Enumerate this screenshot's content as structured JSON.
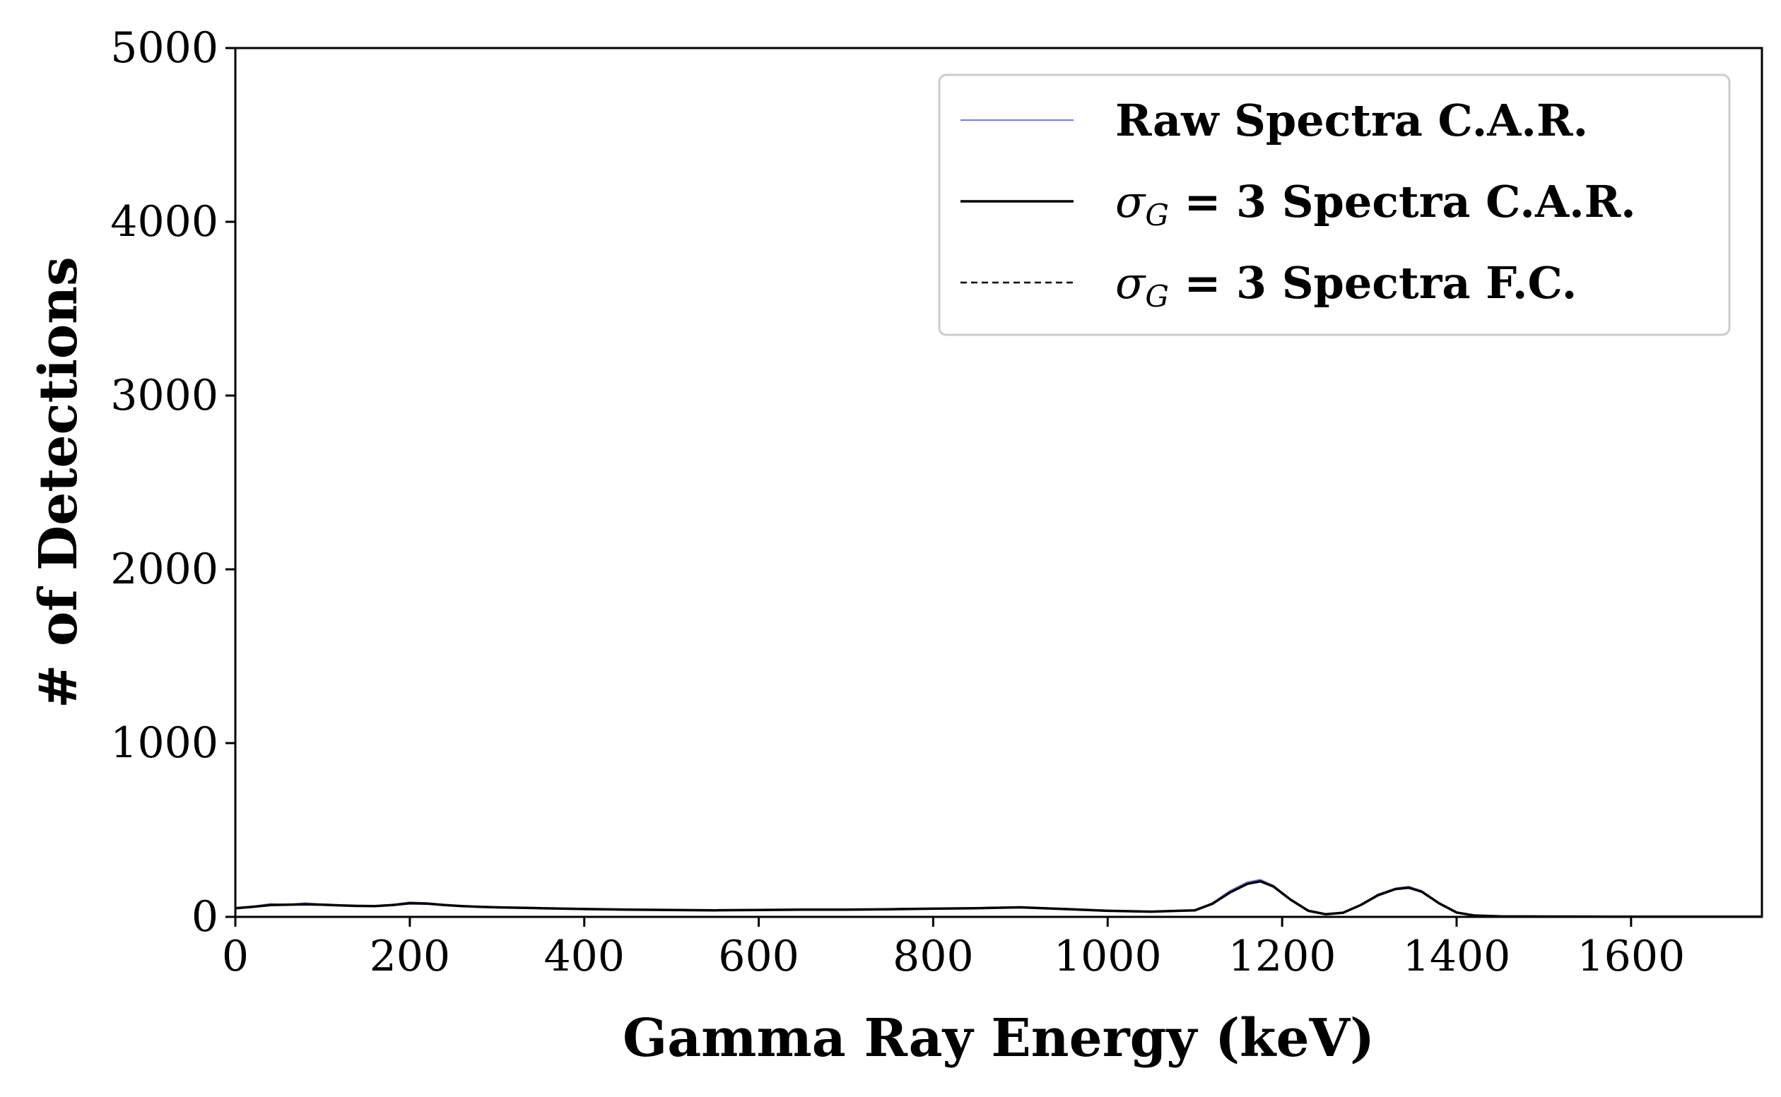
{
  "chart_data": {
    "type": "line",
    "xlabel": "Gamma Ray Energy (keV)",
    "ylabel": "# of Detections",
    "xlim": [
      0,
      1750
    ],
    "ylim": [
      0,
      5000
    ],
    "xticks": [
      0,
      200,
      400,
      600,
      800,
      1000,
      1200,
      1400,
      1600
    ],
    "yticks": [
      0,
      1000,
      2000,
      3000,
      4000,
      5000
    ],
    "x_tick_labels": [
      "0",
      "200",
      "400",
      "600",
      "800",
      "1000",
      "1200",
      "1400",
      "1600"
    ],
    "y_tick_labels": [
      "0",
      "1000",
      "2000",
      "3000",
      "4000",
      "5000"
    ],
    "grid": false,
    "legend_position": "top-right",
    "legend": [
      {
        "series": "raw",
        "text": "Raw Spectra C.A.R.",
        "symbol": "",
        "rest": ""
      },
      {
        "series": "car",
        "text": "",
        "symbol": "σ",
        "sub": "G",
        "rest": " = 3 Spectra C.A.R."
      },
      {
        "series": "fc",
        "text": "",
        "symbol": "σ",
        "sub": "G",
        "rest": " = 3 Spectra F.C."
      }
    ],
    "series": [
      {
        "name": "Raw Spectra C.A.R.",
        "color": "#7b7be0",
        "style": "solid-thin",
        "x": [
          0,
          20,
          40,
          60,
          80,
          100,
          120,
          140,
          160,
          180,
          200,
          220,
          240,
          260,
          280,
          300,
          350,
          400,
          450,
          500,
          550,
          600,
          650,
          700,
          750,
          800,
          850,
          900,
          950,
          1000,
          1050,
          1100,
          1120,
          1140,
          1160,
          1175,
          1190,
          1210,
          1230,
          1250,
          1270,
          1290,
          1310,
          1330,
          1345,
          1360,
          1380,
          1400,
          1420,
          1450,
          1500,
          1600,
          1700,
          1750
        ],
        "y": [
          50,
          60,
          75,
          70,
          80,
          72,
          68,
          65,
          62,
          70,
          85,
          80,
          70,
          62,
          58,
          55,
          50,
          45,
          42,
          40,
          38,
          40,
          42,
          42,
          44,
          48,
          52,
          58,
          45,
          35,
          30,
          40,
          80,
          150,
          200,
          215,
          180,
          100,
          35,
          15,
          25,
          70,
          130,
          165,
          175,
          150,
          80,
          25,
          8,
          3,
          2,
          1,
          1,
          1
        ]
      },
      {
        "name": "σG = 3 Spectra C.A.R.",
        "color": "#000000",
        "style": "solid",
        "x": [
          0,
          20,
          40,
          60,
          80,
          100,
          120,
          140,
          160,
          180,
          200,
          220,
          240,
          260,
          280,
          300,
          350,
          400,
          450,
          500,
          550,
          600,
          650,
          700,
          750,
          800,
          850,
          900,
          950,
          1000,
          1050,
          1100,
          1120,
          1140,
          1160,
          1175,
          1190,
          1210,
          1230,
          1250,
          1270,
          1290,
          1310,
          1330,
          1345,
          1360,
          1380,
          1400,
          1420,
          1450,
          1500,
          1600,
          1700,
          1750
        ],
        "y": [
          50,
          58,
          68,
          70,
          72,
          70,
          66,
          63,
          62,
          68,
          78,
          76,
          68,
          62,
          58,
          55,
          50,
          45,
          42,
          40,
          38,
          40,
          42,
          42,
          44,
          47,
          50,
          55,
          45,
          35,
          30,
          38,
          75,
          140,
          190,
          205,
          175,
          98,
          35,
          15,
          24,
          68,
          125,
          160,
          168,
          145,
          78,
          25,
          8,
          3,
          2,
          1,
          1,
          1
        ]
      },
      {
        "name": "σG = 3 Spectra F.C.",
        "color": "#000000",
        "style": "dashed",
        "x": [
          0,
          20,
          40,
          60,
          80,
          100,
          120,
          140,
          160,
          180,
          200,
          220,
          240,
          260,
          280,
          300,
          350,
          400,
          450,
          500,
          550,
          600,
          650,
          700,
          750,
          800,
          850,
          900,
          950,
          1000,
          1050,
          1100,
          1120,
          1140,
          1160,
          1175,
          1190,
          1210,
          1230,
          1250,
          1270,
          1290,
          1310,
          1330,
          1345,
          1360,
          1380,
          1400,
          1420,
          1450,
          1500,
          1600,
          1700,
          1750
        ],
        "y": [
          50,
          58,
          68,
          70,
          72,
          70,
          66,
          63,
          62,
          68,
          78,
          76,
          68,
          62,
          58,
          55,
          50,
          45,
          42,
          40,
          38,
          40,
          42,
          42,
          44,
          47,
          50,
          55,
          45,
          35,
          30,
          38,
          75,
          140,
          190,
          205,
          175,
          98,
          35,
          15,
          24,
          68,
          125,
          160,
          168,
          145,
          78,
          25,
          8,
          3,
          2,
          1,
          1,
          1
        ]
      }
    ]
  }
}
